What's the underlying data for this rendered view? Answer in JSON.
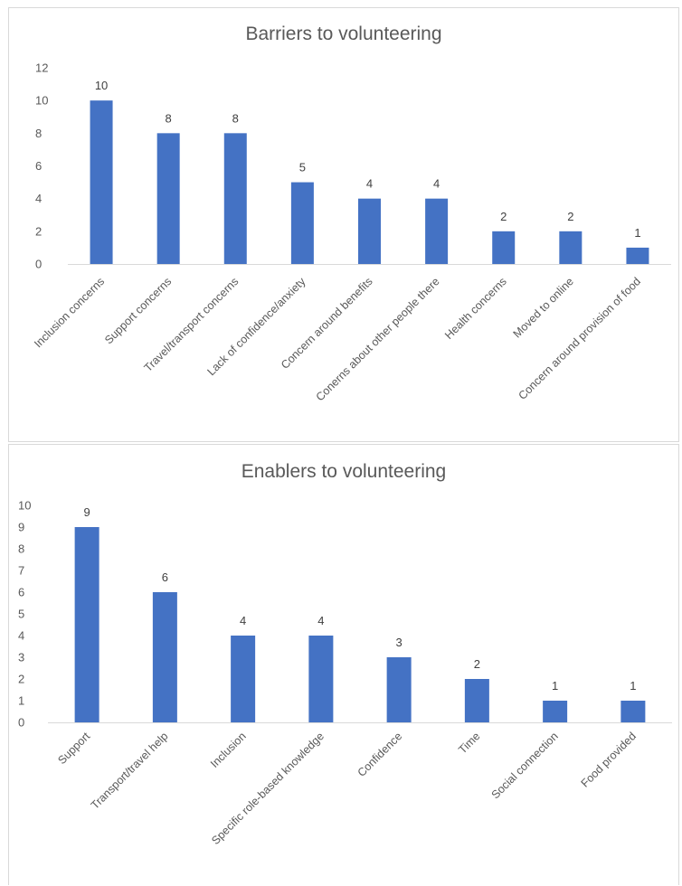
{
  "chart_data": [
    {
      "type": "bar",
      "title": "Barriers to volunteering",
      "categories": [
        "Inclusion concerns",
        "Support concerns",
        "Travel/transport concerns",
        "Lack of confidence/anxiety",
        "Concern around benefits",
        "Conerns about other people there",
        "Health concerns",
        "Moved to online",
        "Concern around provision of food"
      ],
      "values": [
        10,
        8,
        8,
        5,
        4,
        4,
        2,
        2,
        1
      ],
      "ylim": [
        0,
        12
      ],
      "yticks": [
        "0",
        "2",
        "4",
        "6",
        "8",
        "10",
        "12"
      ],
      "xlabel": "",
      "ylabel": "",
      "bar_color": "#4472c4",
      "grid": false,
      "legend": "none"
    },
    {
      "type": "bar",
      "title": "Enablers to volunteering",
      "categories": [
        "Support",
        "Transport/travel help",
        "Inclusion",
        "Specific role-based knowledge",
        "Confidence",
        "Time",
        "Social connection",
        "Food provided"
      ],
      "values": [
        9,
        6,
        4,
        4,
        3,
        2,
        1,
        1
      ],
      "ylim": [
        0,
        10
      ],
      "yticks": [
        "0",
        "1",
        "2",
        "3",
        "4",
        "5",
        "6",
        "7",
        "8",
        "9",
        "10"
      ],
      "xlabel": "",
      "ylabel": "",
      "bar_color": "#4472c4",
      "grid": false,
      "legend": "none"
    }
  ]
}
